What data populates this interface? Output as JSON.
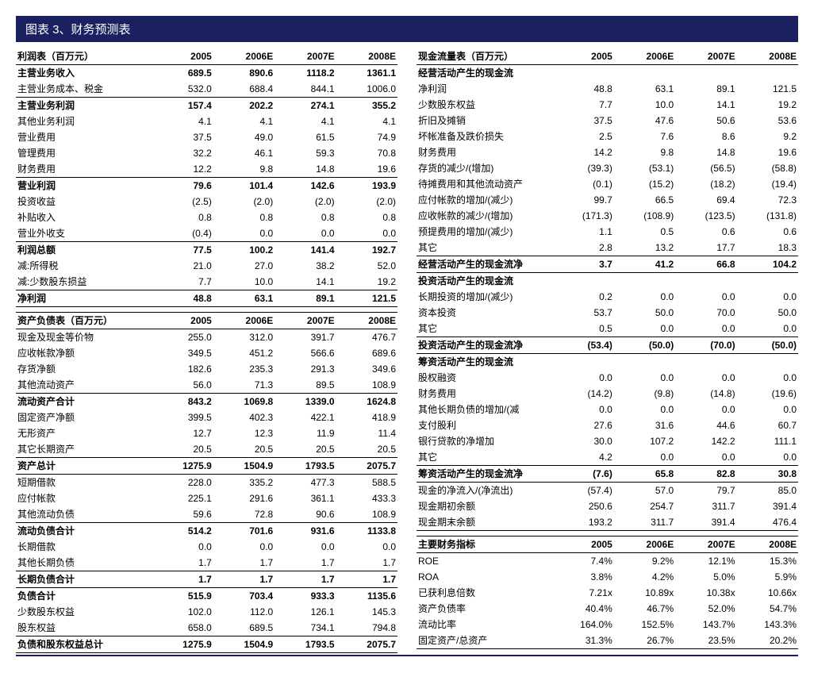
{
  "title": "图表 3、财务预测表",
  "years": [
    "2005",
    "2006E",
    "2007E",
    "2008E"
  ],
  "income_statement": {
    "header": "利润表（百万元）",
    "rows": [
      {
        "label": "主营业务收入",
        "vals": [
          "689.5",
          "890.6",
          "1118.2",
          "1361.1"
        ],
        "bold": true
      },
      {
        "label": "主营业务成本、税金",
        "vals": [
          "532.0",
          "688.4",
          "844.1",
          "1006.0"
        ]
      },
      {
        "label": "主营业务利润",
        "vals": [
          "157.4",
          "202.2",
          "274.1",
          "355.2"
        ],
        "bold": true,
        "line_top": true
      },
      {
        "label": "其他业务利润",
        "vals": [
          "4.1",
          "4.1",
          "4.1",
          "4.1"
        ]
      },
      {
        "label": "营业费用",
        "vals": [
          "37.5",
          "49.0",
          "61.5",
          "74.9"
        ]
      },
      {
        "label": "管理费用",
        "vals": [
          "32.2",
          "46.1",
          "59.3",
          "70.8"
        ]
      },
      {
        "label": "财务费用",
        "vals": [
          "12.2",
          "9.8",
          "14.8",
          "19.6"
        ]
      },
      {
        "label": "营业利润",
        "vals": [
          "79.6",
          "101.4",
          "142.6",
          "193.9"
        ],
        "bold": true,
        "line_top": true
      },
      {
        "label": "投资收益",
        "vals": [
          "(2.5)",
          "(2.0)",
          "(2.0)",
          "(2.0)"
        ]
      },
      {
        "label": "补贴收入",
        "vals": [
          "0.8",
          "0.8",
          "0.8",
          "0.8"
        ]
      },
      {
        "label": "营业外收支",
        "vals": [
          "(0.4)",
          "0.0",
          "0.0",
          "0.0"
        ]
      },
      {
        "label": "利润总额",
        "vals": [
          "77.5",
          "100.2",
          "141.4",
          "192.7"
        ],
        "bold": true,
        "line_top": true
      },
      {
        "label": "减:所得税",
        "vals": [
          "21.0",
          "27.0",
          "38.2",
          "52.0"
        ]
      },
      {
        "label": "减:少数股东损益",
        "vals": [
          "7.7",
          "10.0",
          "14.1",
          "19.2"
        ]
      },
      {
        "label": "净利润",
        "vals": [
          "48.8",
          "63.1",
          "89.1",
          "121.5"
        ],
        "bold": true,
        "line_top": true,
        "line_bottom": true
      }
    ]
  },
  "balance_sheet": {
    "header": "资产负债表（百万元）",
    "rows": [
      {
        "label": "现金及现金等价物",
        "vals": [
          "255.0",
          "312.0",
          "391.7",
          "476.7"
        ]
      },
      {
        "label": "应收帐款净额",
        "vals": [
          "349.5",
          "451.2",
          "566.6",
          "689.6"
        ]
      },
      {
        "label": "存货净额",
        "vals": [
          "182.6",
          "235.3",
          "291.3",
          "349.6"
        ]
      },
      {
        "label": "其他流动资产",
        "vals": [
          "56.0",
          "71.3",
          "89.5",
          "108.9"
        ]
      },
      {
        "label": "流动资产合计",
        "vals": [
          "843.2",
          "1069.8",
          "1339.0",
          "1624.8"
        ],
        "bold": true,
        "line_top": true
      },
      {
        "label": "固定资产净额",
        "vals": [
          "399.5",
          "402.3",
          "422.1",
          "418.9"
        ]
      },
      {
        "label": "无形资产",
        "vals": [
          "12.7",
          "12.3",
          "11.9",
          "11.4"
        ]
      },
      {
        "label": "其它长期资产",
        "vals": [
          "20.5",
          "20.5",
          "20.5",
          "20.5"
        ]
      },
      {
        "label": "资产总计",
        "vals": [
          "1275.9",
          "1504.9",
          "1793.5",
          "2075.7"
        ],
        "bold": true,
        "line_top": true,
        "line_bottom": true
      },
      {
        "label": "短期借款",
        "vals": [
          "228.0",
          "335.2",
          "477.3",
          "588.5"
        ]
      },
      {
        "label": "应付帐款",
        "vals": [
          "225.1",
          "291.6",
          "361.1",
          "433.3"
        ]
      },
      {
        "label": "其他流动负债",
        "vals": [
          "59.6",
          "72.8",
          "90.6",
          "108.9"
        ]
      },
      {
        "label": "流动负债合计",
        "vals": [
          "514.2",
          "701.6",
          "931.6",
          "1133.8"
        ],
        "bold": true,
        "line_top": true
      },
      {
        "label": "长期借款",
        "vals": [
          "0.0",
          "0.0",
          "0.0",
          "0.0"
        ]
      },
      {
        "label": "其他长期负债",
        "vals": [
          "1.7",
          "1.7",
          "1.7",
          "1.7"
        ]
      },
      {
        "label": "长期负债合计",
        "vals": [
          "1.7",
          "1.7",
          "1.7",
          "1.7"
        ],
        "bold": true,
        "line_top": true
      },
      {
        "label": "负债合计",
        "vals": [
          "515.9",
          "703.4",
          "933.3",
          "1135.6"
        ],
        "bold": true,
        "line_top": true
      },
      {
        "label": "少数股东权益",
        "vals": [
          "102.0",
          "112.0",
          "126.1",
          "145.3"
        ]
      },
      {
        "label": "股东权益",
        "vals": [
          "658.0",
          "689.5",
          "734.1",
          "794.8"
        ]
      },
      {
        "label": "负债和股东权益总计",
        "vals": [
          "1275.9",
          "1504.9",
          "1793.5",
          "2075.7"
        ],
        "bold": true,
        "line_top": true,
        "line_bottom": true
      }
    ]
  },
  "cash_flow": {
    "header": "现金流量表（百万元）",
    "rows": [
      {
        "label": "经营活动产生的现金流",
        "vals": [
          "",
          "",
          "",
          ""
        ],
        "bold": true
      },
      {
        "label": "净利润",
        "vals": [
          "48.8",
          "63.1",
          "89.1",
          "121.5"
        ]
      },
      {
        "label": "少数股东权益",
        "vals": [
          "7.7",
          "10.0",
          "14.1",
          "19.2"
        ]
      },
      {
        "label": "折旧及摊销",
        "vals": [
          "37.5",
          "47.6",
          "50.6",
          "53.6"
        ]
      },
      {
        "label": "坏帐准备及跌价损失",
        "vals": [
          "2.5",
          "7.6",
          "8.6",
          "9.2"
        ]
      },
      {
        "label": "财务费用",
        "vals": [
          "14.2",
          "9.8",
          "14.8",
          "19.6"
        ]
      },
      {
        "label": "存货的减少/(增加)",
        "vals": [
          "(39.3)",
          "(53.1)",
          "(56.5)",
          "(58.8)"
        ]
      },
      {
        "label": "待摊费用和其他流动资产",
        "vals": [
          "(0.1)",
          "(15.2)",
          "(18.2)",
          "(19.4)"
        ]
      },
      {
        "label": "应付帐款的增加/(减少)",
        "vals": [
          "99.7",
          "66.5",
          "69.4",
          "72.3"
        ]
      },
      {
        "label": "应收帐款的减少/(增加)",
        "vals": [
          "(171.3)",
          "(108.9)",
          "(123.5)",
          "(131.8)"
        ]
      },
      {
        "label": "预提费用的增加/(减少)",
        "vals": [
          "1.1",
          "0.5",
          "0.6",
          "0.6"
        ]
      },
      {
        "label": "其它",
        "vals": [
          "2.8",
          "13.2",
          "17.7",
          "18.3"
        ]
      },
      {
        "label": "经营活动产生的现金流净",
        "vals": [
          "3.7",
          "41.2",
          "66.8",
          "104.2"
        ],
        "bold": true,
        "line_top": true,
        "line_bottom": true
      },
      {
        "label": "投资活动产生的现金流",
        "vals": [
          "",
          "",
          "",
          ""
        ],
        "bold": true
      },
      {
        "label": "长期投资的增加/(减少)",
        "vals": [
          "0.2",
          "0.0",
          "0.0",
          "0.0"
        ]
      },
      {
        "label": "资本投资",
        "vals": [
          "53.7",
          "50.0",
          "70.0",
          "50.0"
        ]
      },
      {
        "label": "其它",
        "vals": [
          "0.5",
          "0.0",
          "0.0",
          "0.0"
        ]
      },
      {
        "label": "投资活动产生的现金流净",
        "vals": [
          "(53.4)",
          "(50.0)",
          "(70.0)",
          "(50.0)"
        ],
        "bold": true,
        "line_top": true,
        "line_bottom": true
      },
      {
        "label": "筹资活动产生的现金流",
        "vals": [
          "",
          "",
          "",
          ""
        ],
        "bold": true
      },
      {
        "label": "股权融资",
        "vals": [
          "0.0",
          "0.0",
          "0.0",
          "0.0"
        ]
      },
      {
        "label": "财务费用",
        "vals": [
          "(14.2)",
          "(9.8)",
          "(14.8)",
          "(19.6)"
        ]
      },
      {
        "label": "其他长期负债的增加/(减",
        "vals": [
          "0.0",
          "0.0",
          "0.0",
          "0.0"
        ]
      },
      {
        "label": "支付股利",
        "vals": [
          "27.6",
          "31.6",
          "44.6",
          "60.7"
        ]
      },
      {
        "label": "银行贷款的净增加",
        "vals": [
          "30.0",
          "107.2",
          "142.2",
          "111.1"
        ]
      },
      {
        "label": "其它",
        "vals": [
          "4.2",
          "0.0",
          "0.0",
          "0.0"
        ]
      },
      {
        "label": "筹资活动产生的现金流净",
        "vals": [
          "(7.6)",
          "65.8",
          "82.8",
          "30.8"
        ],
        "bold": true,
        "line_top": true,
        "line_bottom": true
      },
      {
        "label": "现金的净流入/(净流出)",
        "vals": [
          "(57.4)",
          "57.0",
          "79.7",
          "85.0"
        ]
      },
      {
        "label": "现金期初余额",
        "vals": [
          "250.6",
          "254.7",
          "311.7",
          "391.4"
        ]
      },
      {
        "label": "现金期末余额",
        "vals": [
          "193.2",
          "311.7",
          "391.4",
          "476.4"
        ],
        "line_bottom": true
      }
    ]
  },
  "key_ratios": {
    "header": "主要财务指标",
    "rows": [
      {
        "label": "ROE",
        "vals": [
          "7.4%",
          "9.2%",
          "12.1%",
          "15.3%"
        ]
      },
      {
        "label": "ROA",
        "vals": [
          "3.8%",
          "4.2%",
          "5.0%",
          "5.9%"
        ]
      },
      {
        "label": "已获利息倍数",
        "vals": [
          "7.21x",
          "10.89x",
          "10.38x",
          "10.66x"
        ]
      },
      {
        "label": "资产负债率",
        "vals": [
          "40.4%",
          "46.7%",
          "52.0%",
          "54.7%"
        ]
      },
      {
        "label": "流动比率",
        "vals": [
          "164.0%",
          "152.5%",
          "143.7%",
          "143.3%"
        ]
      },
      {
        "label": "固定资产/总资产",
        "vals": [
          "31.3%",
          "26.7%",
          "23.5%",
          "20.2%"
        ],
        "line_bottom": true
      }
    ]
  }
}
